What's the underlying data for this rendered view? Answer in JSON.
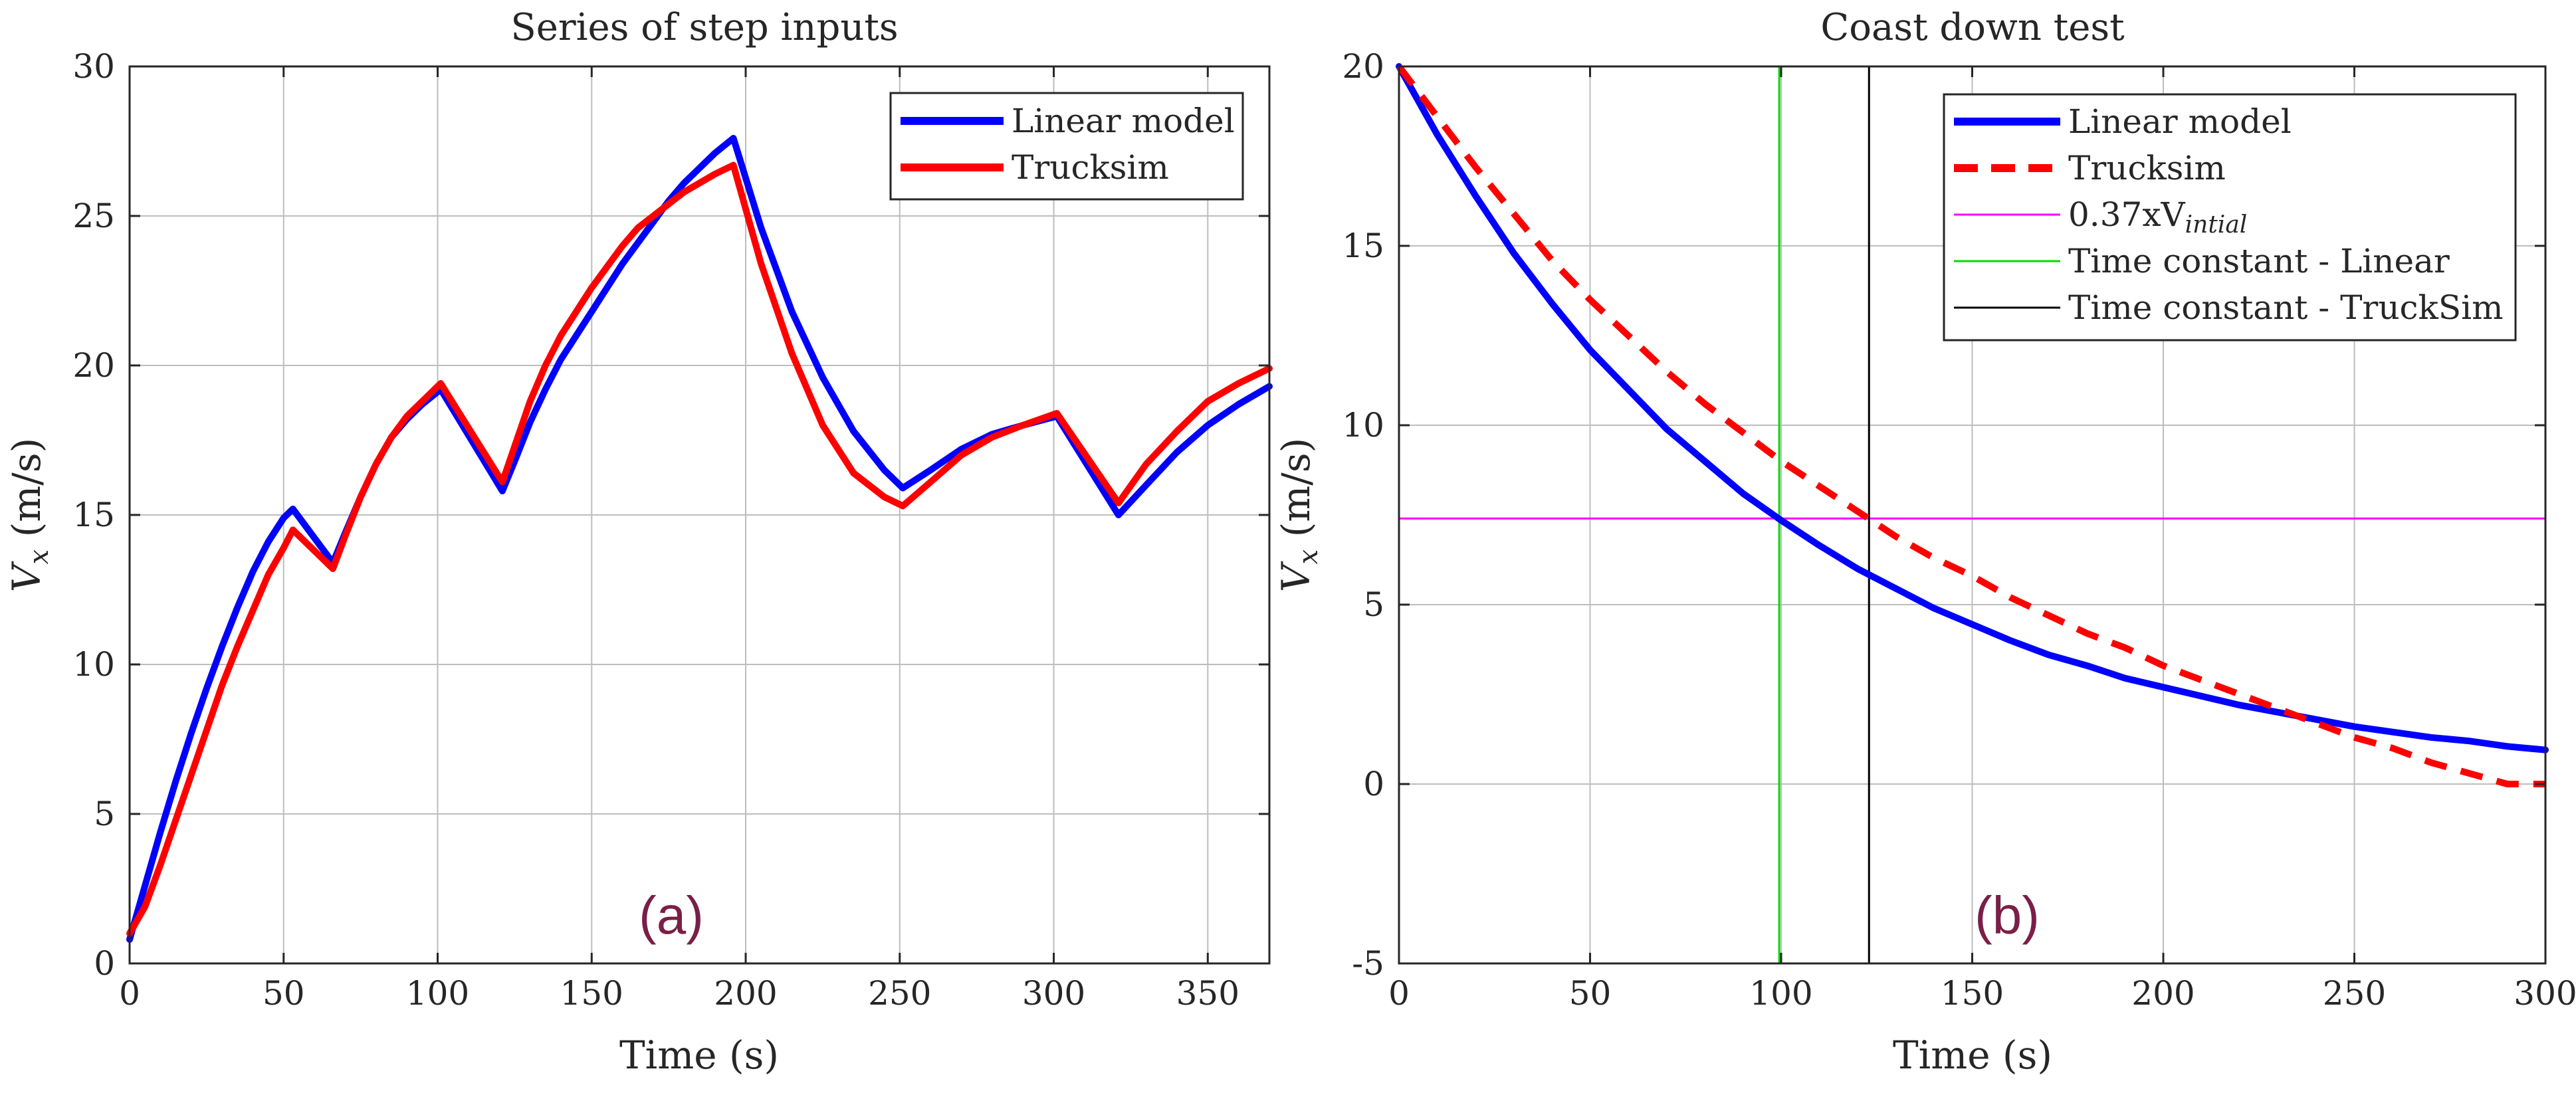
{
  "chart_data": [
    {
      "type": "line",
      "title": "Series of step inputs",
      "xlabel": "Time (s)",
      "ylabel_var": "V",
      "ylabel_sub": "x",
      "ylabel_units": " (m/s)",
      "xlim": [
        0,
        370
      ],
      "ylim": [
        0,
        30
      ],
      "xticks": [
        0,
        50,
        100,
        150,
        200,
        250,
        300,
        350
      ],
      "yticks": [
        0,
        5,
        10,
        15,
        20,
        25,
        30
      ],
      "grid": true,
      "legend_position": "top-right",
      "annotation": "(a)",
      "series": [
        {
          "name": "Linear model",
          "color": "#0000ff",
          "style": "solid",
          "x": [
            0,
            5,
            10,
            15,
            20,
            25,
            30,
            35,
            40,
            45,
            50,
            53,
            66,
            70,
            75,
            80,
            85,
            90,
            95,
            101,
            121,
            125,
            130,
            135,
            140,
            145,
            150,
            155,
            160,
            165,
            170,
            175,
            180,
            185,
            190,
            196,
            205,
            215,
            225,
            235,
            245,
            251,
            260,
            270,
            280,
            290,
            301,
            321,
            330,
            340,
            350,
            360,
            370
          ],
          "y": [
            0.8,
            2.6,
            4.4,
            6.1,
            7.7,
            9.2,
            10.6,
            11.9,
            13.1,
            14.1,
            14.9,
            15.2,
            13.4,
            14.4,
            15.6,
            16.7,
            17.6,
            18.2,
            18.7,
            19.2,
            15.8,
            16.8,
            18.1,
            19.2,
            20.2,
            21.0,
            21.8,
            22.6,
            23.4,
            24.1,
            24.8,
            25.5,
            26.1,
            26.6,
            27.1,
            27.6,
            24.6,
            21.8,
            19.6,
            17.8,
            16.5,
            15.9,
            16.5,
            17.2,
            17.7,
            18.0,
            18.3,
            15.0,
            16.0,
            17.1,
            18.0,
            18.7,
            19.3
          ]
        },
        {
          "name": "Trucksim",
          "color": "#ff0000",
          "style": "solid",
          "x": [
            0,
            5,
            10,
            15,
            20,
            25,
            30,
            35,
            40,
            45,
            50,
            53,
            66,
            70,
            75,
            80,
            85,
            90,
            95,
            101,
            121,
            125,
            130,
            135,
            140,
            145,
            150,
            155,
            160,
            165,
            170,
            175,
            180,
            185,
            190,
            196,
            205,
            215,
            225,
            235,
            245,
            251,
            260,
            270,
            280,
            290,
            301,
            321,
            330,
            340,
            350,
            360,
            370
          ],
          "y": [
            1.0,
            1.9,
            3.3,
            4.8,
            6.3,
            7.8,
            9.3,
            10.6,
            11.8,
            13.0,
            13.9,
            14.5,
            13.2,
            14.3,
            15.6,
            16.7,
            17.6,
            18.3,
            18.8,
            19.4,
            16.1,
            17.3,
            18.8,
            20.0,
            21.0,
            21.8,
            22.6,
            23.3,
            24.0,
            24.6,
            25.0,
            25.4,
            25.8,
            26.1,
            26.4,
            26.7,
            23.4,
            20.4,
            18.0,
            16.4,
            15.6,
            15.3,
            16.1,
            17.0,
            17.6,
            18.0,
            18.4,
            15.4,
            16.7,
            17.8,
            18.8,
            19.4,
            19.9
          ]
        }
      ]
    },
    {
      "type": "line",
      "title": "Coast down test",
      "xlabel": "Time (s)",
      "ylabel_var": "V",
      "ylabel_sub": "x",
      "ylabel_units": " (m/s)",
      "xlim": [
        0,
        300
      ],
      "ylim": [
        -5,
        20
      ],
      "xticks": [
        0,
        50,
        100,
        150,
        200,
        250,
        300
      ],
      "yticks": [
        -5,
        0,
        5,
        10,
        15,
        20
      ],
      "grid": true,
      "legend_position": "top-right",
      "annotation": "(b)",
      "series": [
        {
          "name": "Linear model",
          "color": "#0000ff",
          "style": "solid",
          "x": [
            0,
            10,
            20,
            30,
            40,
            50,
            60,
            70,
            80,
            90,
            100,
            110,
            120,
            130,
            140,
            150,
            160,
            170,
            180,
            190,
            200,
            210,
            220,
            230,
            240,
            250,
            260,
            270,
            280,
            290,
            300
          ],
          "y": [
            20.0,
            18.1,
            16.4,
            14.8,
            13.4,
            12.1,
            11.0,
            9.9,
            9.0,
            8.1,
            7.35,
            6.65,
            6.0,
            5.45,
            4.9,
            4.45,
            4.0,
            3.6,
            3.3,
            2.95,
            2.7,
            2.45,
            2.2,
            2.0,
            1.8,
            1.6,
            1.45,
            1.3,
            1.2,
            1.05,
            0.95
          ]
        },
        {
          "name": "Trucksim",
          "color": "#ff0000",
          "style": "dashed",
          "x": [
            0,
            10,
            20,
            30,
            40,
            50,
            60,
            70,
            80,
            90,
            100,
            110,
            120,
            130,
            140,
            150,
            160,
            170,
            180,
            190,
            200,
            210,
            220,
            230,
            240,
            250,
            260,
            270,
            280,
            290,
            300
          ],
          "y": [
            20.0,
            18.6,
            17.2,
            15.9,
            14.6,
            13.5,
            12.5,
            11.5,
            10.6,
            9.8,
            9.0,
            8.3,
            7.6,
            6.9,
            6.3,
            5.8,
            5.2,
            4.7,
            4.2,
            3.8,
            3.3,
            2.9,
            2.5,
            2.1,
            1.7,
            1.3,
            1.0,
            0.6,
            0.3,
            0.0,
            0.0
          ]
        },
        {
          "name": "0.37xV",
          "name_sub": "intial",
          "color": "#ff00ff",
          "style": "thin-horizontal",
          "y_const": 7.4
        },
        {
          "name": "Time constant - Linear",
          "color": "#00dd00",
          "style": "thin-vertical",
          "x_const": 99.5
        },
        {
          "name": "Time constant - TruckSim",
          "color": "#000000",
          "style": "thin-vertical",
          "x_const": 123
        }
      ]
    }
  ]
}
